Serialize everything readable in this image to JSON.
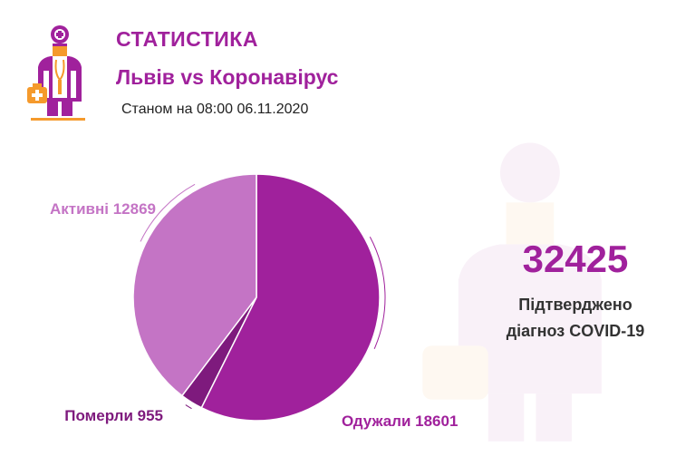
{
  "header": {
    "title": "СТАТИСТИКА",
    "subtitle": "Львів vs Коронавірус",
    "date_text": "Станом на 08:00 06.11.2020"
  },
  "logo": {
    "icon": "doctor-icon"
  },
  "colors": {
    "primary": "#a0219c",
    "light": "#c474c5",
    "dark": "#7e1a7d",
    "accent": "#f59a2c"
  },
  "summary": {
    "total": "32425",
    "label_line1": "Підтверджено",
    "label_line2": "діагноз COVID-19"
  },
  "chart_data": {
    "type": "pie",
    "slices": [
      {
        "name": "Одужали",
        "value": 18601,
        "color": "#a0219c",
        "label": "Одужали 18601"
      },
      {
        "name": "Померли",
        "value": 955,
        "color": "#7e1a7d",
        "label": "Померли 955"
      },
      {
        "name": "Активні",
        "value": 12869,
        "color": "#c474c5",
        "label": "Активні 12869"
      }
    ],
    "total": 32425,
    "start_angle": "12 o'clock",
    "direction": "clockwise"
  }
}
